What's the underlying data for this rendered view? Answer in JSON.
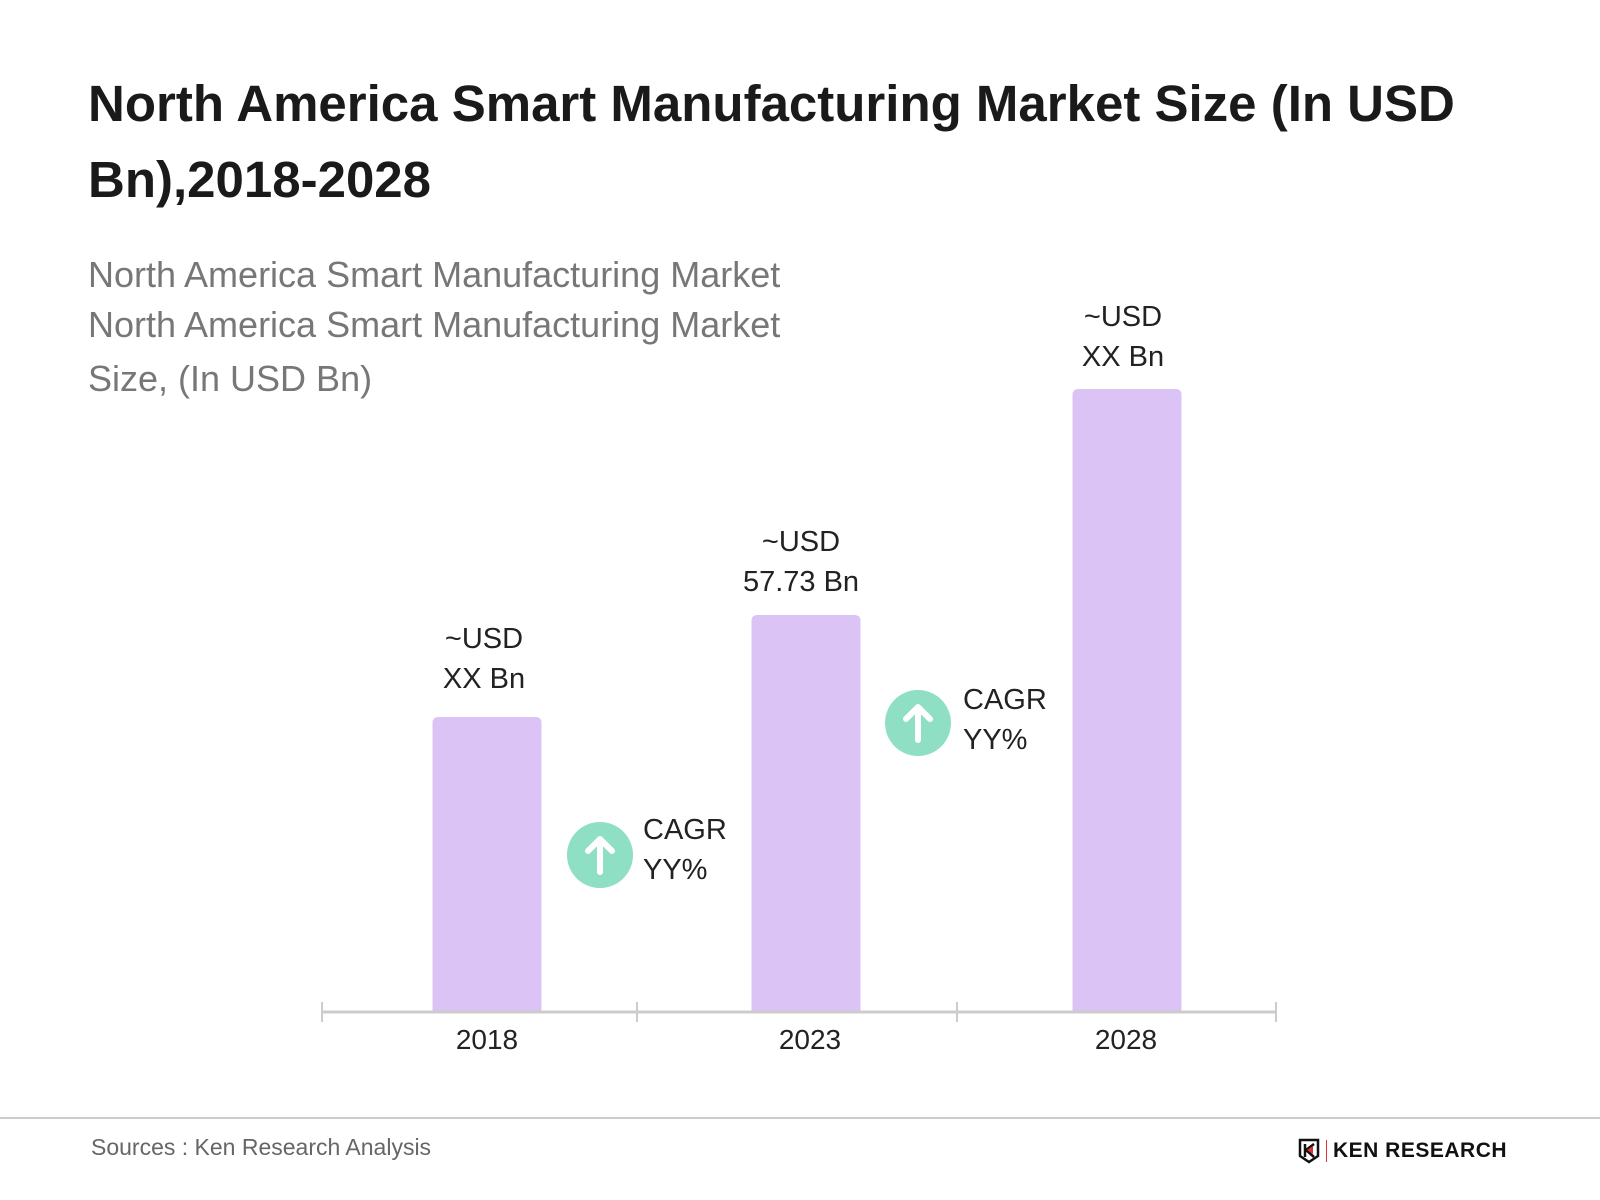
{
  "chart_data": {
    "type": "bar",
    "title": "North America Smart Manufacturing Market Size (In USD Bn),2018-2028",
    "subtitle_lines": [
      "North America Smart Manufacturing Market",
      "North America Smart Manufacturing Market",
      "Size, (In USD Bn)"
    ],
    "categories": [
      "2018",
      "2023",
      "2028"
    ],
    "values": [
      42.9,
      57.73,
      90.6
    ],
    "data_labels": [
      {
        "line1": "~USD",
        "line2": "XX Bn"
      },
      {
        "line1": "~USD",
        "line2": "57.73 Bn"
      },
      {
        "line1": "~USD",
        "line2": "XX Bn"
      }
    ],
    "annotations": [
      {
        "line1": "CAGR",
        "line2": "YY%",
        "icon": "arrow-up-circle-icon"
      },
      {
        "line1": "CAGR",
        "line2": "YY%",
        "icon": "arrow-up-circle-icon"
      }
    ],
    "xlabel": "",
    "ylabel": "",
    "ylim": [
      0,
      95
    ],
    "grid": false,
    "colors": {
      "bar": "#dcc3f5",
      "cagr_circle": "#8edfc4",
      "axis": "#cccccc"
    }
  },
  "footer": {
    "source": "Sources : Ken Research Analysis",
    "logo_text": "KEN RESEARCH"
  }
}
